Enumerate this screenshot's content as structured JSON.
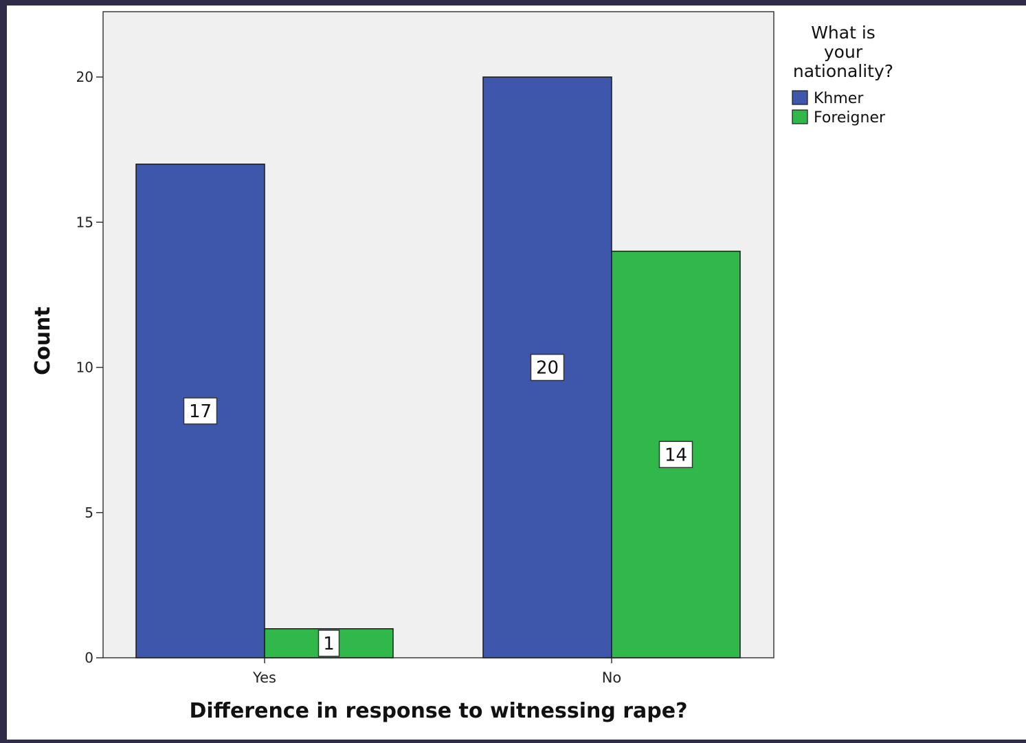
{
  "chart_data": {
    "type": "bar",
    "categories": [
      "Yes",
      "No"
    ],
    "series": [
      {
        "name": "Khmer",
        "values": [
          17,
          20
        ],
        "color": "#3f57aa"
      },
      {
        "name": "Foreigner",
        "values": [
          1,
          14
        ],
        "color": "#30b94a"
      }
    ],
    "xlabel": "Difference in response to witnessing rape?",
    "ylabel": "Count",
    "ylim": [
      0,
      22.25
    ],
    "yticks": [
      0,
      5,
      10,
      15,
      20
    ],
    "grid": false,
    "legend": {
      "title": "What is your nationality?",
      "title_lines": [
        "What is",
        "your",
        "nationality?"
      ],
      "placement": "right-top"
    },
    "plot_background": "#f0f0f0",
    "data_labels": true
  }
}
